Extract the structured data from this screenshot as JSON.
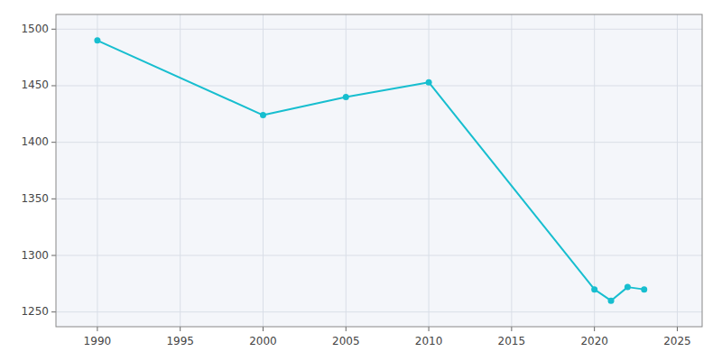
{
  "chart_data": {
    "type": "line",
    "x": [
      1990,
      2000,
      2005,
      2010,
      2020,
      2021,
      2022,
      2023
    ],
    "values": [
      1490,
      1424,
      1440,
      1453,
      1270,
      1260,
      1272,
      1270
    ],
    "color": "#17becf",
    "marker": "circle",
    "xlim": [
      1987.5,
      2026.5
    ],
    "ylim": [
      1237,
      1513
    ],
    "xticks": [
      1990,
      1995,
      2000,
      2005,
      2010,
      2015,
      2020,
      2025
    ],
    "yticks": [
      1250,
      1300,
      1350,
      1400,
      1450,
      1500
    ],
    "grid": true
  }
}
